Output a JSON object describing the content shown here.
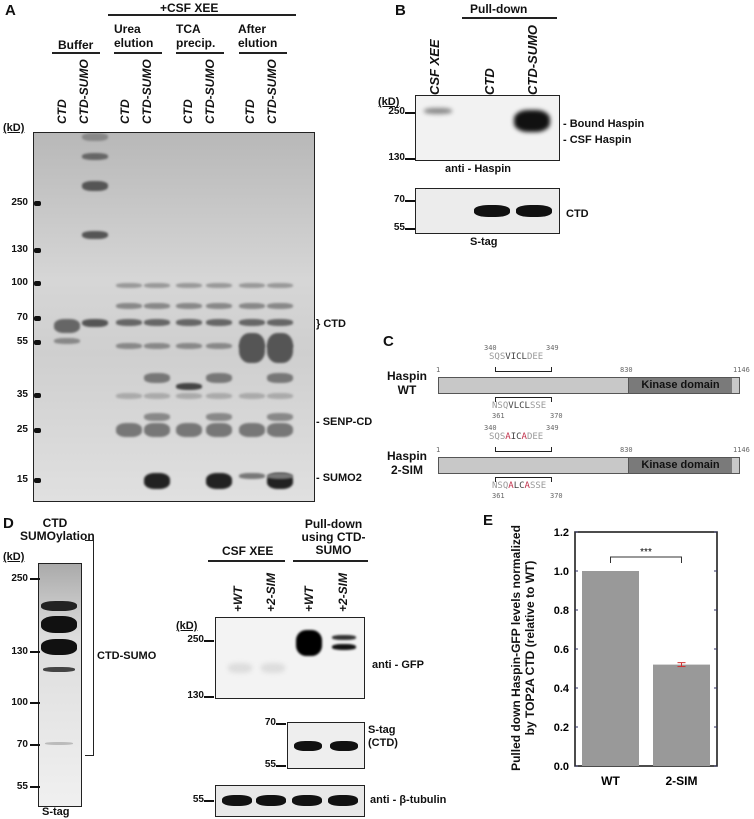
{
  "panels": {
    "a": {
      "label": "A",
      "treatment": "+CSF XEE",
      "groups": [
        "Buffer",
        "Urea elution",
        "TCA precip.",
        "After elution"
      ],
      "lanes": [
        "CTD",
        "CTD-SUMO",
        "CTD",
        "CTD-SUMO",
        "CTD",
        "CTD-SUMO",
        "CTD",
        "CTD-SUMO"
      ],
      "unit": "(kD)",
      "markers": [
        "250",
        "130",
        "100",
        "70",
        "55",
        "35",
        "25",
        "15"
      ],
      "right_labels": [
        "} CTD",
        "- SENP-CD",
        "- SUMO2"
      ]
    },
    "b": {
      "label": "B",
      "header": "Pull-down",
      "lanes": [
        "CSF XEE",
        "CTD",
        "CTD-SUMO"
      ],
      "unit": "(kD)",
      "markers_top": [
        "250",
        "130"
      ],
      "band_labels": [
        "- Bound Haspin",
        "- CSF Haspin"
      ],
      "blot_top": "anti - Haspin",
      "markers_bottom": [
        "70",
        "55"
      ],
      "blot_bottom_label": "CTD",
      "blot_bottom": "S-tag"
    },
    "c": {
      "label": "C",
      "constructs": [
        {
          "name": "Haspin WT",
          "seq1": "SQSVICLDEE",
          "seq1_start": "340",
          "seq1_end": "349",
          "seq2": "NSQVLCLSSE",
          "seq2_start": "361",
          "seq2_end": "370",
          "start": "1",
          "kinase_start": "830",
          "end": "1146",
          "kinase_label": "Kinase domain"
        },
        {
          "name": "Haspin 2-SIM",
          "seq1": "SQSAICADEE",
          "seq1_start": "340",
          "seq1_end": "349",
          "seq2": "NSQALCASSE",
          "seq2_start": "361",
          "seq2_end": "370",
          "start": "1",
          "kinase_start": "830",
          "end": "1146",
          "kinase_label": "Kinase domain"
        }
      ],
      "mutation_color": "#c0304a"
    },
    "d": {
      "label": "D",
      "left_title": "CTD SUMOylation",
      "unit": "(kD)",
      "left_markers": [
        "250",
        "130",
        "100",
        "70",
        "55"
      ],
      "bracket_label": "CTD-SUMO",
      "left_blot": "S-tag",
      "group1": "CSF XEE",
      "group2": "Pull-down using CTD-SUMO",
      "lanes": [
        "+WT",
        "+2-SIM",
        "+WT",
        "+2-SIM"
      ],
      "gfp_markers": [
        "250",
        "130"
      ],
      "gfp_blot": "anti - GFP",
      "stag_markers": [
        "70",
        "55"
      ],
      "stag_blot": "S-tag (CTD)",
      "tub_marker": "55",
      "tub_blot": "anti - β-tubulin"
    },
    "e": {
      "label": "E"
    }
  },
  "chart_data": {
    "type": "bar",
    "categories": [
      "WT",
      "2-SIM"
    ],
    "values": [
      1.0,
      0.52
    ],
    "errors": [
      0,
      0.01
    ],
    "ylabel": "Pulled down Haspin-GFP levels normalized by TOP2A CTD (relative to WT)",
    "ylim": [
      0,
      1.2
    ],
    "yticks": [
      "0.0",
      "0.2",
      "0.4",
      "0.6",
      "0.8",
      "1.0",
      "1.2"
    ],
    "significance": "***",
    "bar_color": "#999999",
    "error_color": "#d03030",
    "grid": false
  }
}
